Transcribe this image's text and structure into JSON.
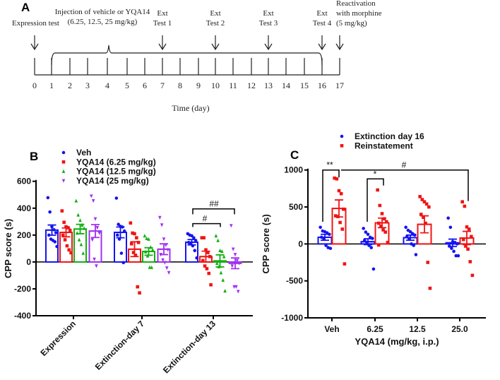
{
  "panels": {
    "a": "A",
    "b": "B",
    "c": "C"
  },
  "timeline": {
    "days": [
      "0",
      "1",
      "2",
      "3",
      "4",
      "5",
      "6",
      "7",
      "8",
      "9",
      "10",
      "11",
      "12",
      "13",
      "14",
      "15",
      "16",
      "17"
    ],
    "axis_label": "Time (day)",
    "injection_label": [
      "Injection of vehicle or YQA14",
      "(6.25, 12.5, 25 mg/kg)"
    ],
    "events": [
      {
        "day": "0",
        "lines": [
          "Expression test"
        ]
      },
      {
        "day": "7",
        "lines": [
          "Ext",
          "Test 1"
        ]
      },
      {
        "day": "10",
        "lines": [
          "Ext",
          "Test 2"
        ]
      },
      {
        "day": "13",
        "lines": [
          "Ext",
          "Test 3"
        ]
      },
      {
        "day": "16",
        "lines": [
          "Ext",
          "Test 4"
        ]
      },
      {
        "day": "17",
        "lines": [
          "Reactivation",
          "with morphine",
          "(5 mg/kg)"
        ]
      }
    ]
  },
  "chart_data": [
    {
      "type": "bar",
      "panel": "B",
      "ylabel": "CPP score (s)",
      "xlabel": "",
      "ylim": [
        -400,
        600
      ],
      "yticks": [
        "600",
        "400",
        "200",
        "0",
        "-200",
        "-400"
      ],
      "categories": [
        "Expression",
        "Extinction-day 7",
        "Extinction-day 13"
      ],
      "legend_position": "top",
      "series": [
        {
          "name": "Veh",
          "color": "#1414f0",
          "marker": "circle",
          "values": [
            237,
            220,
            147
          ],
          "sem": [
            38,
            40,
            20
          ],
          "points": [
            [
              478,
              372,
              262,
              240,
              218,
              200,
              170,
              160,
              150,
              115
            ],
            [
              475,
              280,
              265,
              260,
              230,
              200,
              170,
              65,
              -5
            ],
            [
              210,
              200,
              195,
              180,
              160,
              145,
              135,
              120,
              85,
              30
            ]
          ]
        },
        {
          "name": "YQA14 (6.25 mg/kg)",
          "color": "#f01414",
          "marker": "square",
          "values": [
            220,
            95,
            40
          ],
          "sem": [
            33,
            55,
            40
          ],
          "points": [
            [
              380,
              295,
              262,
              255,
              235,
              200,
              165,
              120,
              90,
              68
            ],
            [
              290,
              215,
              210,
              180,
              145,
              135,
              70,
              50,
              -185,
              -230
            ],
            [
              180,
              180,
              90,
              70,
              40,
              10,
              -30,
              -50,
              -85,
              -170
            ]
          ]
        },
        {
          "name": "YQA14 (12.5 mg/kg)",
          "color": "#10b010",
          "marker": "triangle-up",
          "values": [
            245,
            78,
            8
          ],
          "sem": [
            35,
            28,
            45
          ],
          "points": [
            [
              455,
              350,
              310,
              275,
              250,
              215,
              165,
              130,
              65
            ],
            [
              195,
              175,
              170,
              110,
              90,
              75,
              45,
              -40,
              -40
            ],
            [
              195,
              160,
              85,
              80,
              40,
              -10,
              -35,
              -80,
              -135,
              -215
            ]
          ]
        },
        {
          "name": "YQA14 (25 mg/kg)",
          "color": "#a030f0",
          "marker": "triangle-down",
          "values": [
            230,
            95,
            -10
          ],
          "sem": [
            48,
            40,
            40
          ],
          "points": [
            [
              490,
              455,
              320,
              255,
              215,
              165,
              20,
              -30
            ],
            [
              330,
              275,
              170,
              125,
              90,
              55,
              15,
              -5,
              -45,
              -80
            ],
            [
              270,
              95,
              55,
              10,
              -10,
              -30,
              -185,
              -185,
              -220
            ]
          ]
        }
      ],
      "annotations": [
        {
          "label": "##",
          "from": "Veh / Extinction-day 13",
          "to": "YQA14 (25 mg/kg) / Extinction-day 13"
        },
        {
          "label": "#",
          "from": "Veh / Extinction-day 13",
          "to": "YQA14 (12.5 mg/kg) / Extinction-day 13"
        }
      ]
    },
    {
      "type": "bar",
      "panel": "C",
      "ylabel": "CPP score (s)",
      "xlabel": "YQA14 (mg/kg, i.p.)",
      "ylim": [
        -1000,
        1000
      ],
      "yticks": [
        "1000",
        "500",
        "0",
        "-500",
        "-1000"
      ],
      "categories": [
        "Veh",
        "6.25",
        "12.5",
        "25.0"
      ],
      "legend_position": "top",
      "series": [
        {
          "name": "Extinction day 16",
          "color": "#1414f0",
          "marker": "circle",
          "values": [
            90,
            30,
            85,
            15
          ],
          "sem": [
            40,
            40,
            35,
            50
          ],
          "points": [
            [
              225,
              175,
              165,
              150,
              130,
              90,
              75,
              -20,
              -50,
              -60
            ],
            [
              210,
              160,
              130,
              90,
              75,
              50,
              20,
              -20,
              -50,
              -340
            ],
            [
              225,
              185,
              165,
              140,
              120,
              100,
              70,
              0,
              -20,
              -145
            ],
            [
              350,
              225,
              30,
              20,
              0,
              -30,
              -60,
              -100,
              -160,
              -160
            ]
          ]
        },
        {
          "name": "Reinstatement",
          "color": "#f01414",
          "marker": "square",
          "values": [
            480,
            285,
            265,
            80
          ],
          "sem": [
            115,
            65,
            115,
            90
          ],
          "points": [
            [
              890,
              880,
              720,
              680,
              470,
              380,
              370,
              290,
              200,
              -270
            ],
            [
              730,
              520,
              410,
              340,
              300,
              280,
              240,
              190,
              160,
              20,
              -15
            ],
            [
              640,
              600,
              570,
              540,
              500,
              400,
              360,
              280,
              -250,
              -600
            ],
            [
              570,
              510,
              230,
              200,
              100,
              60,
              -30,
              -70,
              -240,
              -425
            ]
          ]
        }
      ],
      "annotations": [
        {
          "label": "**",
          "from": "Extinction day 16 / Veh",
          "to": "Reinstatement / Veh"
        },
        {
          "label": "*",
          "from": "Extinction day 16 / 6.25",
          "to": "Reinstatement / 6.25"
        },
        {
          "label": "#",
          "from": "Reinstatement / Veh",
          "to": "Reinstatement / 25.0"
        }
      ]
    }
  ]
}
